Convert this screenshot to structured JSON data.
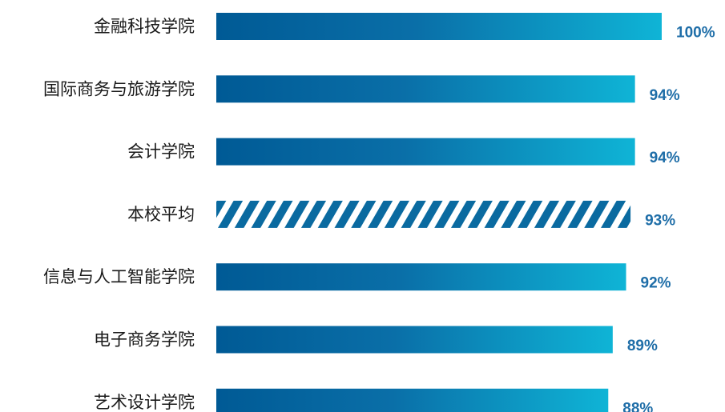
{
  "chart_data": {
    "type": "bar",
    "orientation": "horizontal",
    "categories": [
      "金融科技学院",
      "国际商务与旅游学院",
      "会计学院",
      "本校平均",
      "信息与人工智能学院",
      "电子商务学院",
      "艺术设计学院"
    ],
    "values": [
      100,
      94,
      94,
      93,
      92,
      89,
      88
    ],
    "value_labels": [
      "100%",
      "94%",
      "94%",
      "93%",
      "92%",
      "89%",
      "88%"
    ],
    "unit": "%",
    "highlight_category": "本校平均",
    "highlight_style": "hatched",
    "title": "",
    "xlabel": "",
    "ylabel": "",
    "grid": false,
    "legend": "none"
  },
  "colors": {
    "bar_gradient_start": "#005a95",
    "bar_gradient_mid": "#0a6fa8",
    "bar_gradient_end": "#0fb4d6",
    "hatch_color": "#0a6aa0",
    "value_label": "#1f6ea8",
    "category_label": "#1a1a1a"
  }
}
